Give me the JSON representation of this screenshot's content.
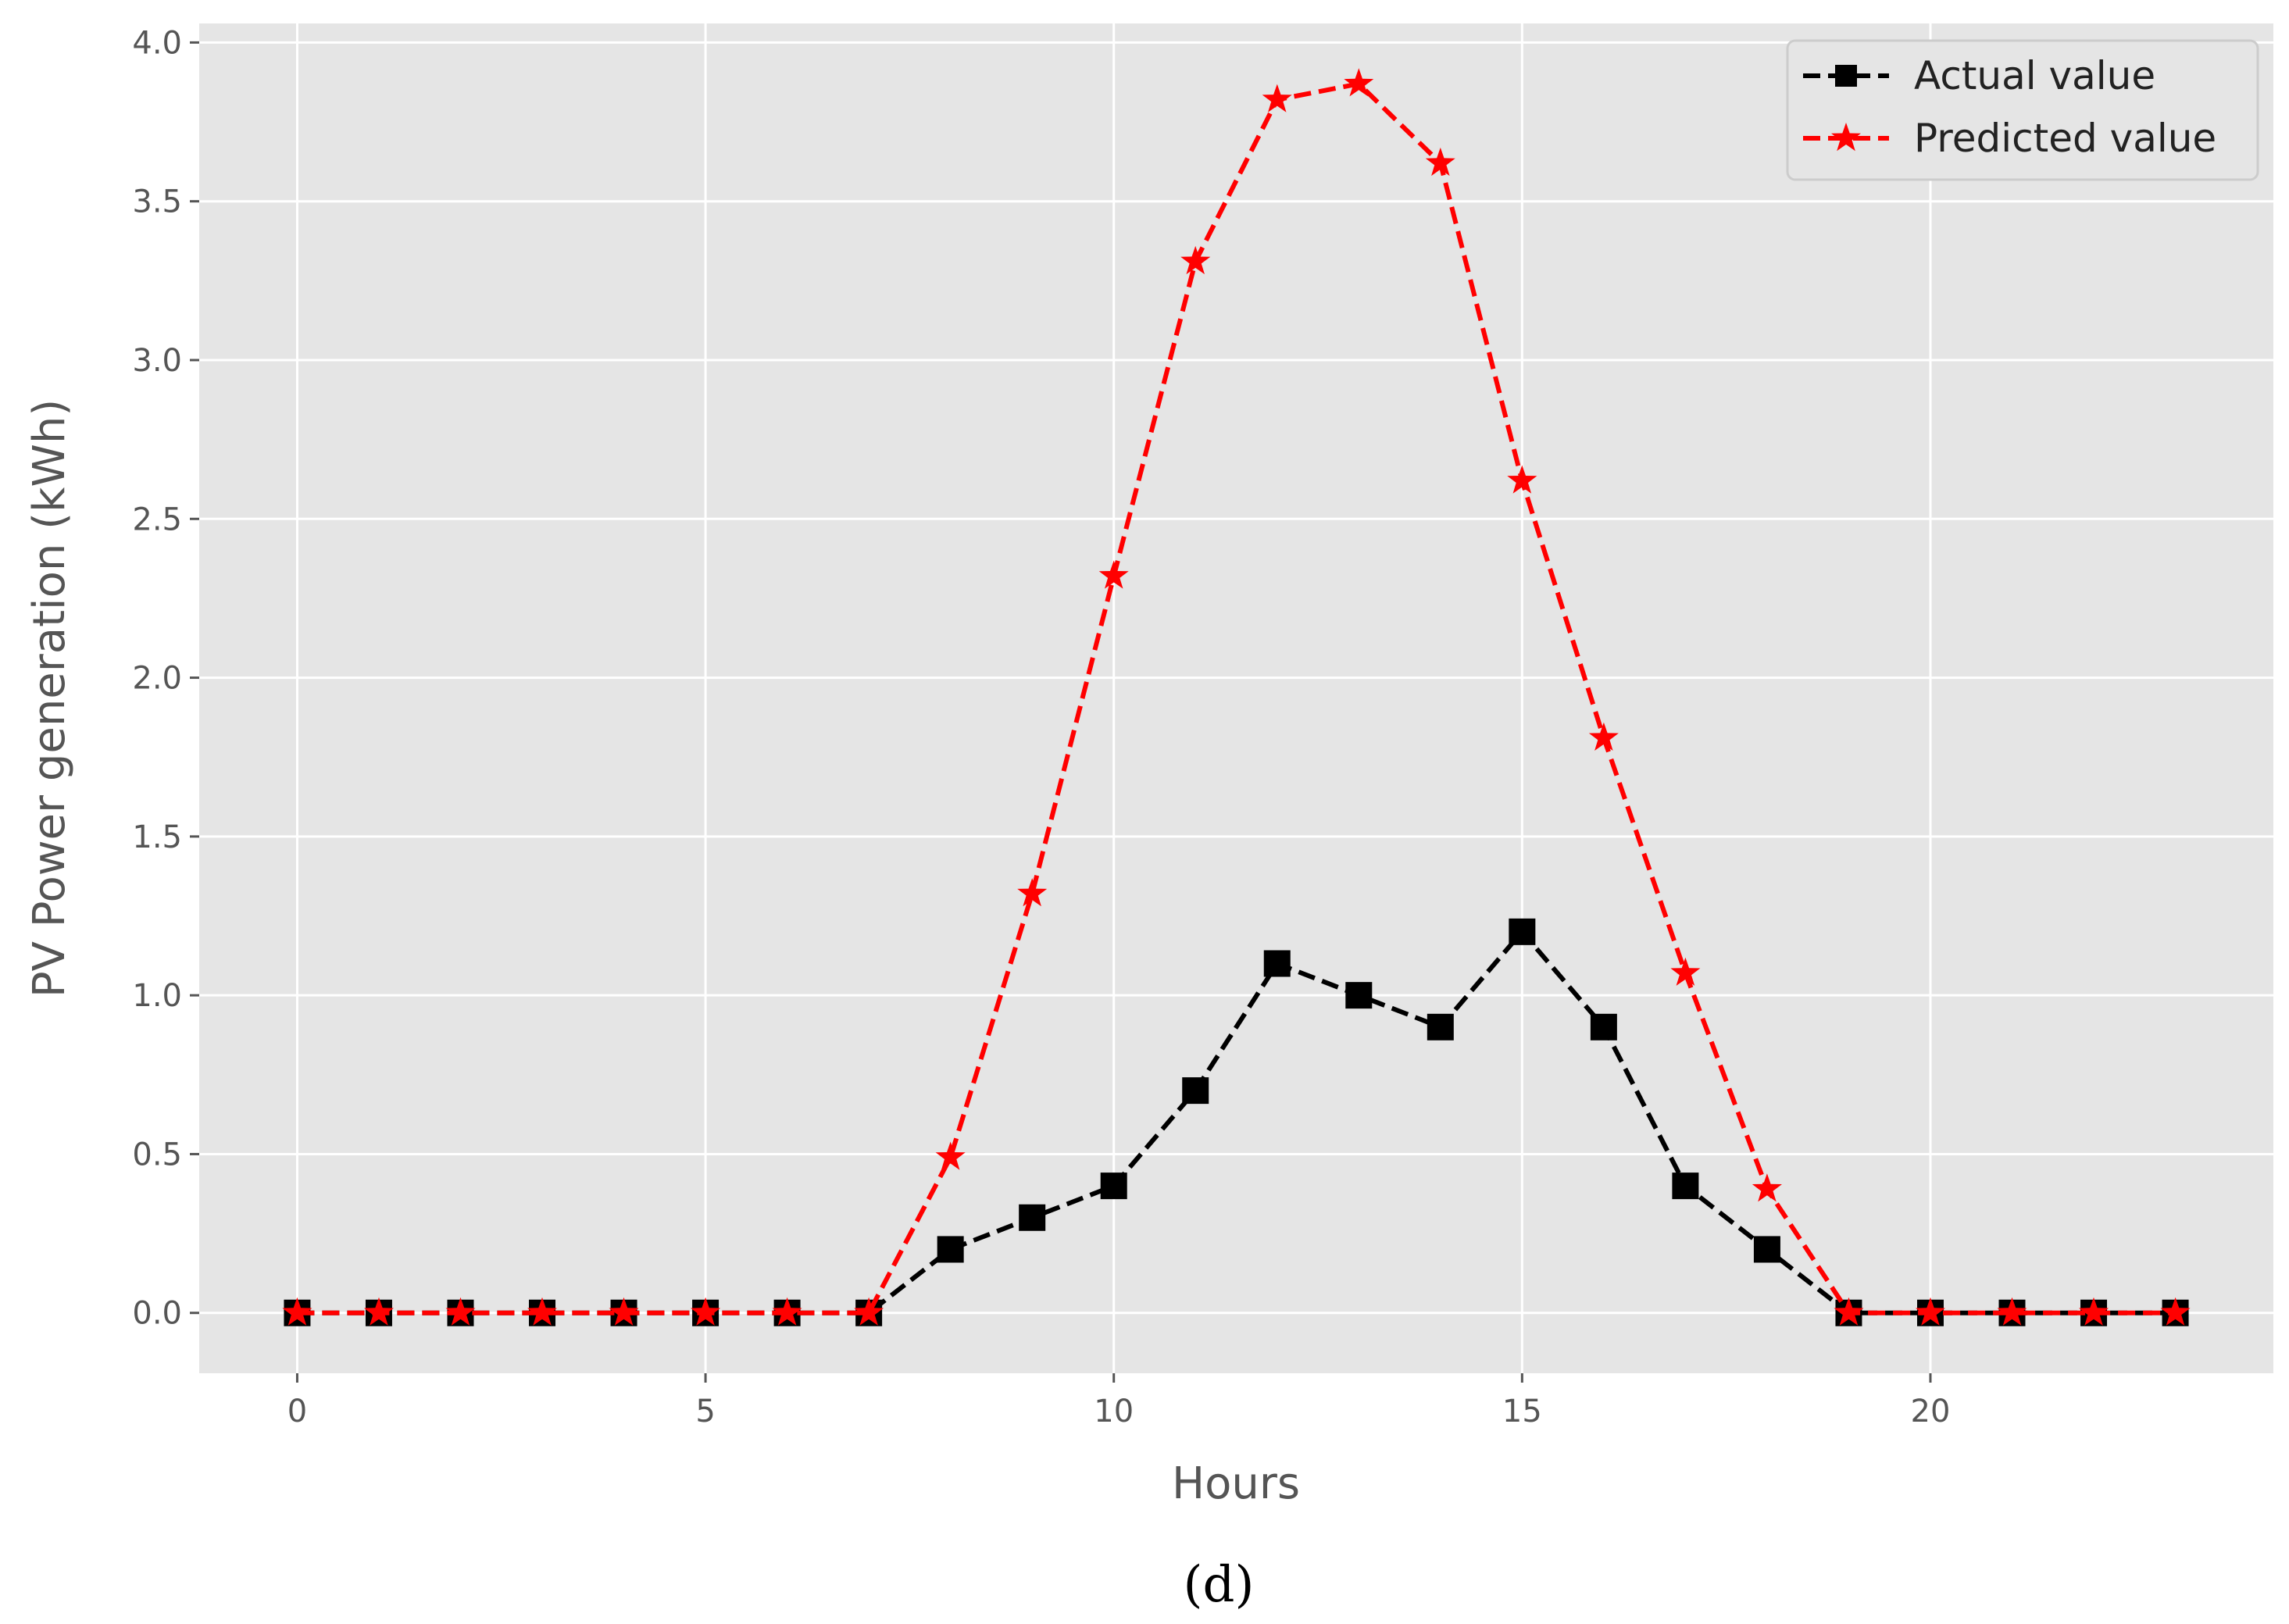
{
  "panel_label": "(d)",
  "chart_data": {
    "type": "line",
    "title": "",
    "xlabel": "Hours",
    "ylabel": "PV Power generation (kWh)",
    "xlim": [
      -1.2,
      24.2
    ],
    "ylim": [
      -0.19,
      4.06
    ],
    "xticks": [
      0,
      5,
      10,
      15,
      20
    ],
    "yticks": [
      0.0,
      0.5,
      1.0,
      1.5,
      2.0,
      2.5,
      3.0,
      3.5,
      4.0
    ],
    "grid": true,
    "legend_position": "top-right",
    "x": [
      0,
      1,
      2,
      3,
      4,
      5,
      6,
      7,
      8,
      9,
      10,
      11,
      12,
      13,
      14,
      15,
      16,
      17,
      18,
      19,
      20,
      21,
      22,
      23
    ],
    "series": [
      {
        "name": "Actual value",
        "color": "#000000",
        "marker": "square",
        "line_style": "dashed",
        "values": [
          0,
          0,
          0,
          0,
          0,
          0,
          0,
          0,
          0.2,
          0.3,
          0.4,
          0.7,
          1.1,
          1.0,
          0.9,
          1.2,
          0.9,
          0.4,
          0.2,
          0,
          0,
          0,
          0,
          0
        ]
      },
      {
        "name": "Predicted value",
        "color": "#ff0000",
        "marker": "star",
        "line_style": "dashed",
        "values": [
          0,
          0,
          0,
          0,
          0,
          0,
          0,
          0,
          0.49,
          1.32,
          2.32,
          3.31,
          3.82,
          3.87,
          3.62,
          2.62,
          1.81,
          1.07,
          0.39,
          0,
          0,
          0,
          0,
          0
        ]
      }
    ]
  }
}
